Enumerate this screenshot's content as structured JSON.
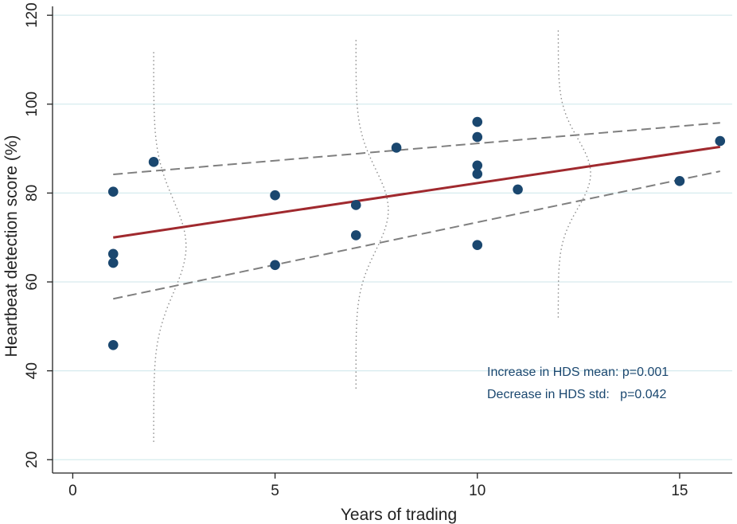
{
  "chart_data": {
    "type": "scatter",
    "title": "",
    "xlabel": "Years of trading",
    "ylabel": "Heartbeat detection score (%)",
    "xlim": [
      -0.5,
      16.3
    ],
    "ylim": [
      17,
      122
    ],
    "x_ticks": [
      0,
      5,
      10,
      15
    ],
    "y_ticks": [
      20,
      40,
      60,
      80,
      100,
      120
    ],
    "grid": "horizontal",
    "legend": "none",
    "colors": {
      "points": "#1a476f",
      "fit_line": "#a0292e",
      "ci_lines": "#7f7f7f",
      "density_curves": "#8c8c8c",
      "grid": "#d6ebee",
      "annotation_text": "#1a476f"
    },
    "points": [
      {
        "x": 1,
        "y": 80.3
      },
      {
        "x": 1,
        "y": 66.3
      },
      {
        "x": 1,
        "y": 64.3
      },
      {
        "x": 1,
        "y": 45.8
      },
      {
        "x": 2,
        "y": 87.0
      },
      {
        "x": 5,
        "y": 79.5
      },
      {
        "x": 5,
        "y": 63.8
      },
      {
        "x": 7,
        "y": 77.3
      },
      {
        "x": 7,
        "y": 70.5
      },
      {
        "x": 8,
        "y": 90.2
      },
      {
        "x": 10,
        "y": 96.0
      },
      {
        "x": 10,
        "y": 92.6
      },
      {
        "x": 10,
        "y": 86.2
      },
      {
        "x": 10,
        "y": 84.3
      },
      {
        "x": 10,
        "y": 68.3
      },
      {
        "x": 11,
        "y": 80.8
      },
      {
        "x": 15,
        "y": 82.7
      },
      {
        "x": 16,
        "y": 91.7
      }
    ],
    "fit_line": {
      "x": [
        1,
        16
      ],
      "y": [
        70.0,
        90.4
      ]
    },
    "ci_upper": {
      "x": [
        1,
        16
      ],
      "y": [
        84.2,
        95.8
      ]
    },
    "ci_lower": {
      "x": [
        1,
        16
      ],
      "y": [
        56.2,
        84.9
      ]
    },
    "density_curves": [
      {
        "x_center": 2,
        "mean": 68.0,
        "sd": 10.5,
        "peak_width": 0.8,
        "y_range": [
          24,
          112
        ]
      },
      {
        "x_center": 7,
        "mean": 76.2,
        "sd": 9.2,
        "peak_width": 0.8,
        "y_range": [
          36,
          115
        ]
      },
      {
        "x_center": 12,
        "mean": 84.4,
        "sd": 7.8,
        "peak_width": 0.8,
        "y_range": [
          52,
          117
        ]
      }
    ],
    "annotations": [
      "Increase in HDS mean: p=0.001",
      "Decrease in HDS std:   p=0.042"
    ]
  }
}
